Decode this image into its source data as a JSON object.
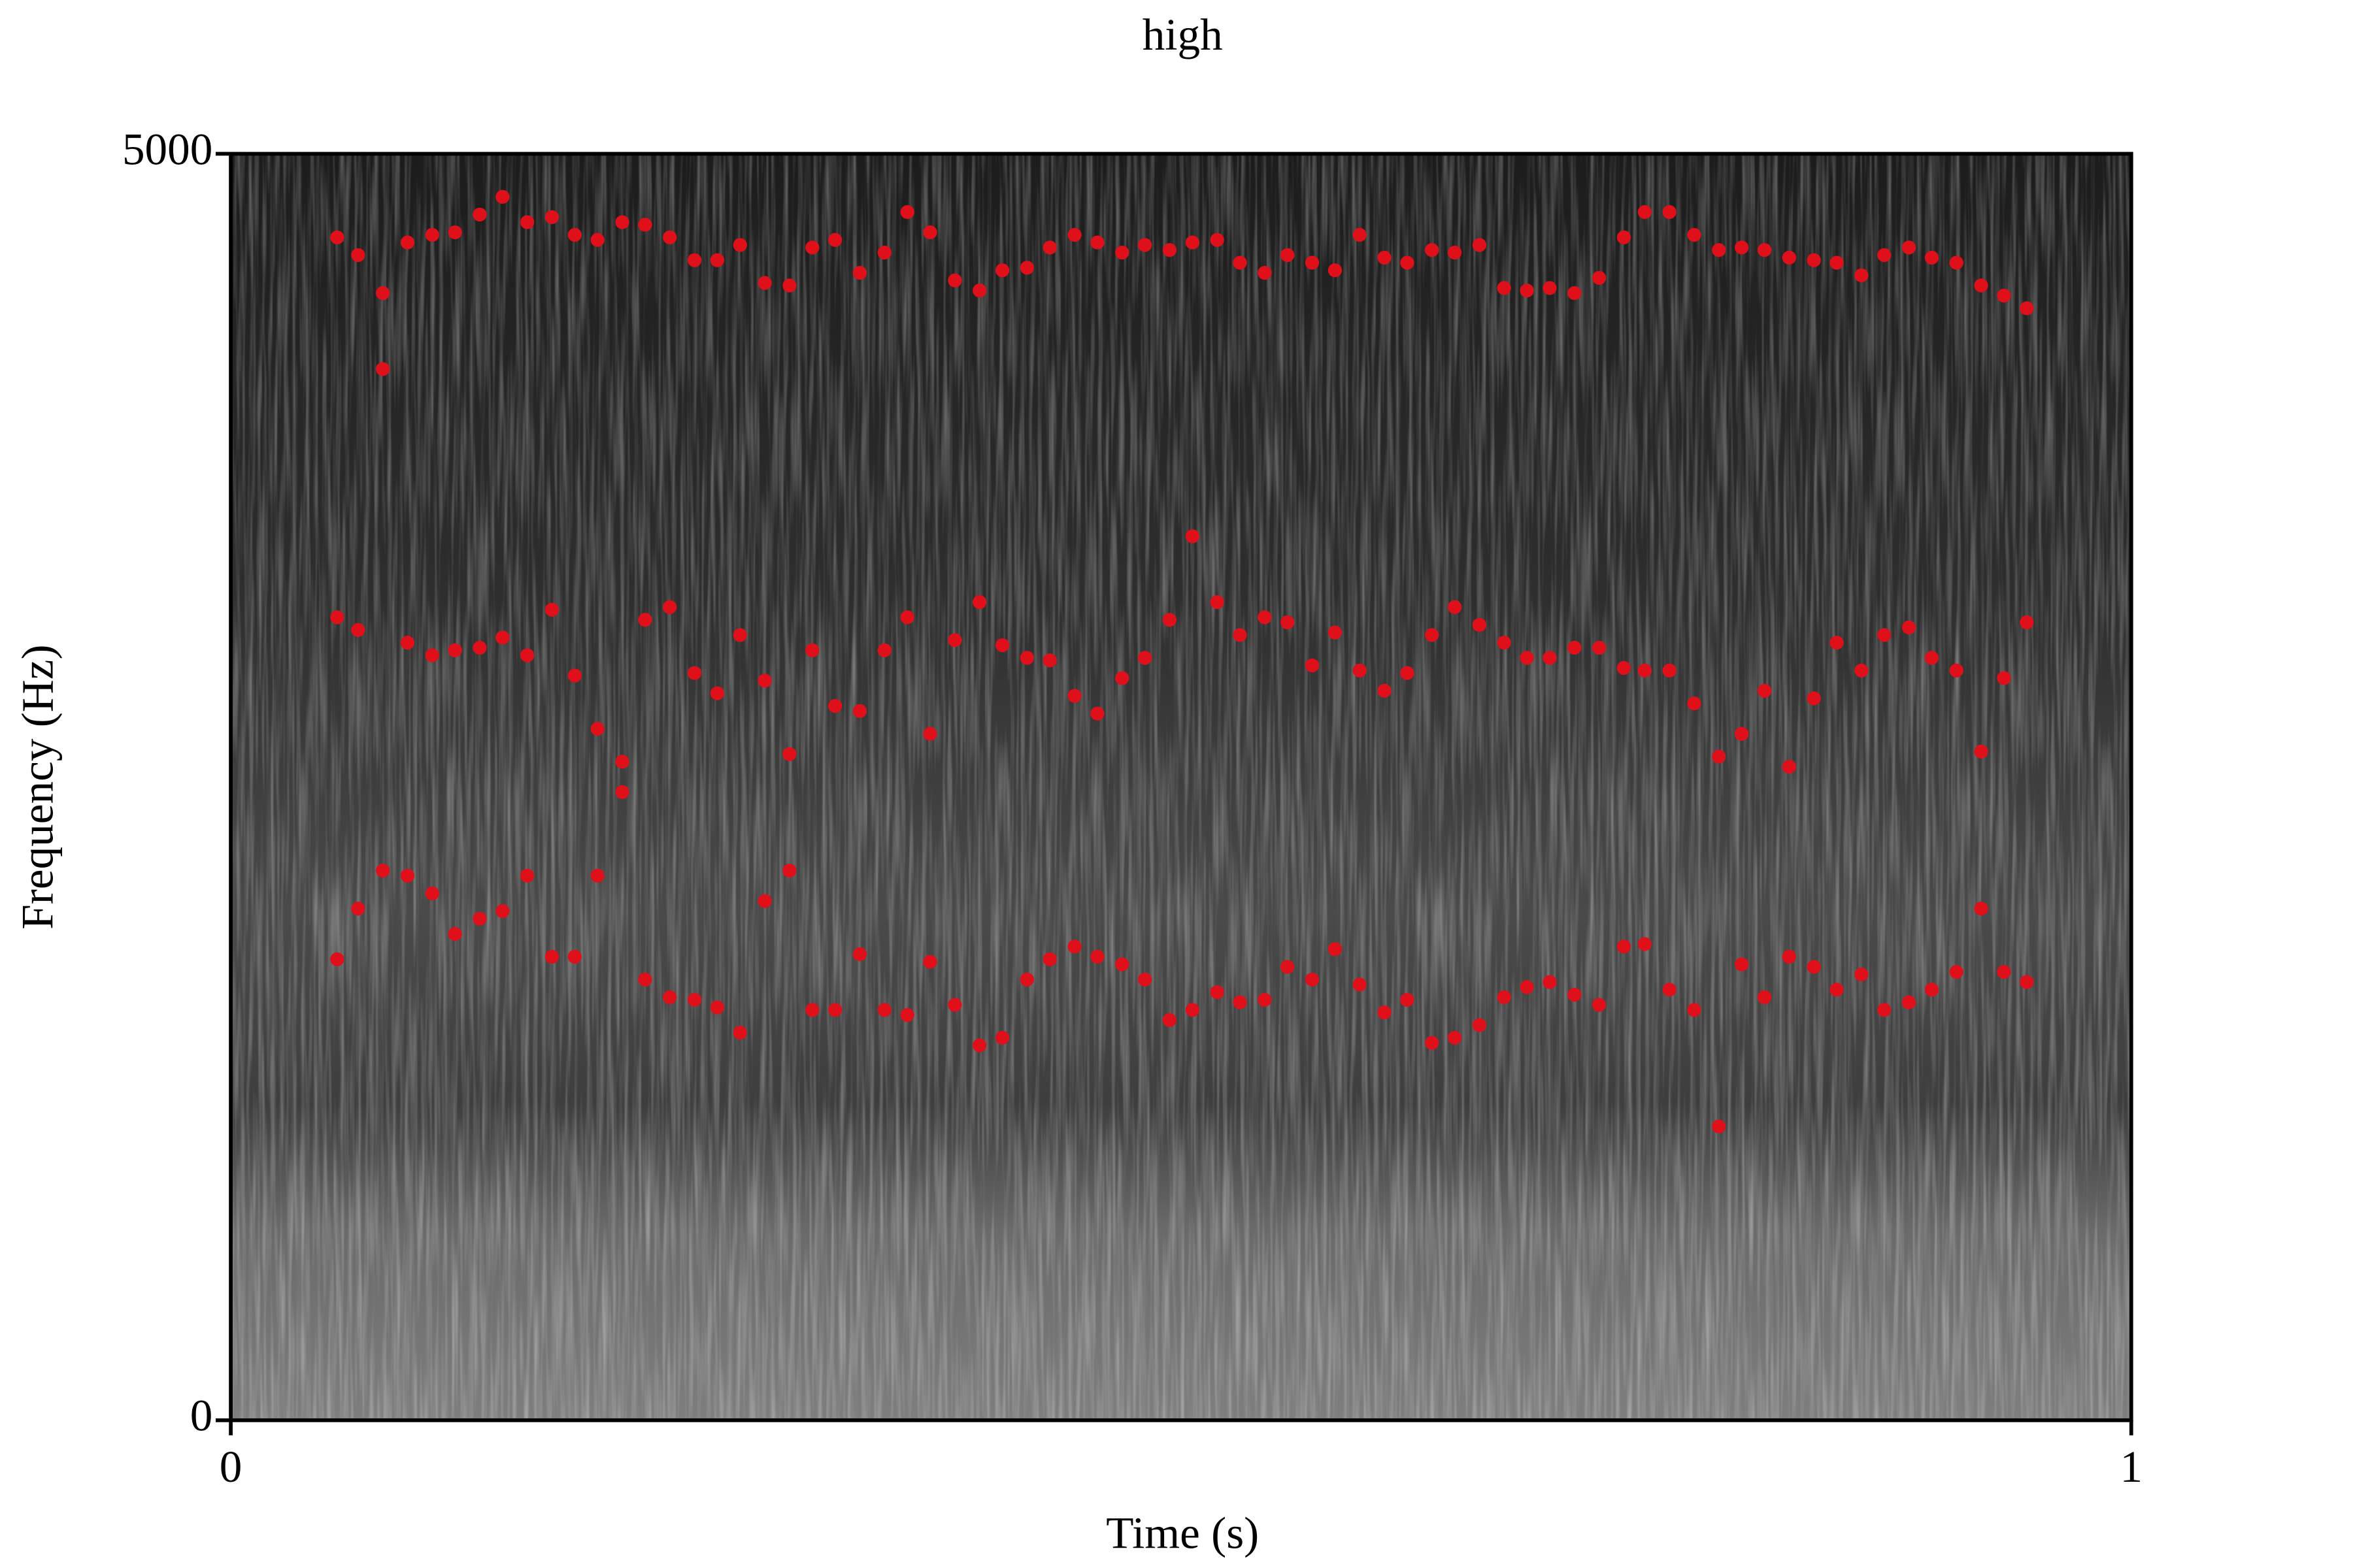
{
  "chart_data": {
    "type": "scatter",
    "title": "high",
    "x_label": "Time (s)",
    "y_label": "Frequency (Hz)",
    "xlim": [
      0,
      1
    ],
    "xticks": [
      0,
      1
    ],
    "ylim": [
      0,
      5000
    ],
    "yticks": [
      0,
      5000
    ],
    "color": "#e0101a",
    "x": [
      0.056,
      0.067,
      0.08,
      0.08,
      0.093,
      0.106,
      0.118,
      0.131,
      0.143,
      0.156,
      0.169,
      0.181,
      0.193,
      0.206,
      0.218,
      0.231,
      0.244,
      0.256,
      0.268,
      0.281,
      0.294,
      0.306,
      0.318,
      0.331,
      0.344,
      0.356,
      0.368,
      0.381,
      0.394,
      0.406,
      0.419,
      0.431,
      0.444,
      0.456,
      0.469,
      0.481,
      0.494,
      0.506,
      0.519,
      0.531,
      0.544,
      0.556,
      0.569,
      0.581,
      0.594,
      0.607,
      0.619,
      0.632,
      0.644,
      0.657,
      0.67,
      0.682,
      0.694,
      0.707,
      0.72,
      0.733,
      0.744,
      0.757,
      0.77,
      0.783,
      0.795,
      0.807,
      0.82,
      0.833,
      0.845,
      0.858,
      0.87,
      0.883,
      0.895,
      0.908,
      0.921,
      0.933,
      0.945,
      0.506,
      0.056,
      0.067,
      0.093,
      0.106,
      0.118,
      0.131,
      0.143,
      0.156,
      0.169,
      0.181,
      0.193,
      0.206,
      0.206,
      0.218,
      0.231,
      0.244,
      0.256,
      0.268,
      0.281,
      0.294,
      0.306,
      0.318,
      0.331,
      0.344,
      0.356,
      0.368,
      0.381,
      0.394,
      0.406,
      0.419,
      0.431,
      0.444,
      0.456,
      0.469,
      0.481,
      0.494,
      0.519,
      0.531,
      0.544,
      0.556,
      0.569,
      0.581,
      0.594,
      0.607,
      0.619,
      0.632,
      0.644,
      0.657,
      0.67,
      0.682,
      0.694,
      0.707,
      0.72,
      0.733,
      0.744,
      0.757,
      0.77,
      0.783,
      0.795,
      0.807,
      0.82,
      0.833,
      0.845,
      0.858,
      0.87,
      0.883,
      0.895,
      0.908,
      0.921,
      0.933,
      0.945,
      0.056,
      0.067,
      0.08,
      0.093,
      0.106,
      0.118,
      0.131,
      0.143,
      0.156,
      0.169,
      0.181,
      0.193,
      0.218,
      0.231,
      0.244,
      0.256,
      0.268,
      0.281,
      0.294,
      0.306,
      0.318,
      0.331,
      0.344,
      0.356,
      0.368,
      0.381,
      0.394,
      0.406,
      0.419,
      0.431,
      0.444,
      0.456,
      0.469,
      0.481,
      0.494,
      0.506,
      0.519,
      0.531,
      0.544,
      0.556,
      0.569,
      0.581,
      0.594,
      0.607,
      0.619,
      0.632,
      0.644,
      0.657,
      0.67,
      0.682,
      0.694,
      0.707,
      0.72,
      0.733,
      0.744,
      0.757,
      0.77,
      0.783,
      0.795,
      0.807,
      0.82,
      0.833,
      0.845,
      0.858,
      0.87,
      0.883,
      0.895,
      0.908,
      0.921,
      0.933,
      0.945
    ],
    "y": [
      4670,
      4600,
      4450,
      4150,
      4650,
      4680,
      4690,
      4760,
      4830,
      4730,
      4750,
      4680,
      4660,
      4730,
      4720,
      4670,
      4580,
      4580,
      4640,
      4490,
      4480,
      4630,
      4660,
      4530,
      4610,
      4770,
      4690,
      4500,
      4460,
      4540,
      4550,
      4630,
      4680,
      4650,
      4610,
      4640,
      4620,
      4650,
      4660,
      4570,
      4530,
      4600,
      4570,
      4540,
      4680,
      4590,
      4570,
      4620,
      4610,
      4640,
      4470,
      4460,
      4470,
      4450,
      4510,
      4670,
      4770,
      4770,
      4680,
      4620,
      4630,
      4620,
      4590,
      4580,
      4570,
      4520,
      4600,
      4630,
      4590,
      4570,
      4480,
      4440,
      4390,
      3490,
      3170,
      3120,
      3070,
      3020,
      3040,
      3050,
      3090,
      3020,
      3200,
      2940,
      2730,
      2600,
      2480,
      3160,
      3210,
      2950,
      2870,
      3100,
      2920,
      2630,
      3040,
      2820,
      2800,
      3040,
      3170,
      2710,
      3080,
      3230,
      3060,
      3010,
      3000,
      2860,
      2790,
      2930,
      3010,
      3160,
      3230,
      3100,
      3170,
      3150,
      2980,
      3110,
      2960,
      2880,
      2950,
      3100,
      3210,
      3140,
      3070,
      3010,
      3010,
      3050,
      3050,
      2970,
      2960,
      2960,
      2830,
      2620,
      2710,
      2880,
      2580,
      2850,
      3070,
      2960,
      3100,
      3130,
      3010,
      2960,
      2640,
      2930,
      3150,
      1820,
      2020,
      2170,
      2150,
      2080,
      1920,
      1980,
      2010,
      2150,
      1830,
      1830,
      2150,
      1740,
      1670,
      1660,
      1630,
      1530,
      2050,
      2170,
      1620,
      1620,
      1840,
      1620,
      1600,
      1810,
      1640,
      1480,
      1510,
      1740,
      1820,
      1870,
      1830,
      1800,
      1740,
      1580,
      1620,
      1690,
      1650,
      1660,
      1790,
      1740,
      1860,
      1720,
      1610,
      1660,
      1490,
      1510,
      1560,
      1670,
      1710,
      1730,
      1680,
      1640,
      1870,
      1880,
      1700,
      1620,
      1160,
      1800,
      1670,
      1830,
      1790,
      1700,
      1760,
      1620,
      1650,
      1700,
      1770,
      2020,
      1770,
      1730
    ]
  }
}
